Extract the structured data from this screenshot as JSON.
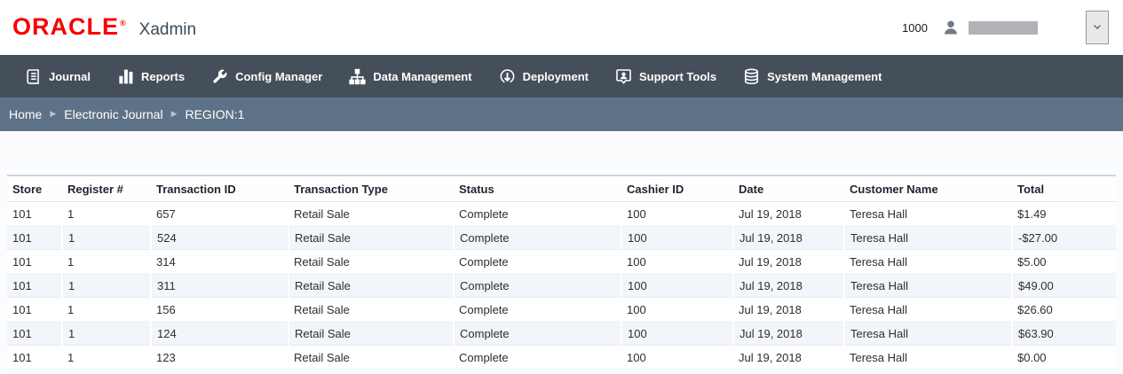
{
  "header": {
    "logo_text": "ORACLE",
    "logo_mark": "®",
    "app_name": "Xadmin",
    "user_id": "1000",
    "user_icon": "person-icon",
    "dropdown_icon": "chevron-down-icon"
  },
  "nav": {
    "items": [
      {
        "label": "Journal",
        "icon": "journal-icon"
      },
      {
        "label": "Reports",
        "icon": "bar-chart-icon"
      },
      {
        "label": "Config Manager",
        "icon": "wrench-icon"
      },
      {
        "label": "Data Management",
        "icon": "sitemap-icon"
      },
      {
        "label": "Deployment",
        "icon": "download-circle-icon"
      },
      {
        "label": "Support Tools",
        "icon": "support-bubble-icon"
      },
      {
        "label": "System Management",
        "icon": "database-icon"
      }
    ]
  },
  "breadcrumb": {
    "items": [
      "Home",
      "Electronic Journal",
      "REGION:1"
    ],
    "separator": "▶"
  },
  "table": {
    "columns": [
      "Store",
      "Register #",
      "Transaction ID",
      "Transaction Type",
      "Status",
      "Cashier ID",
      "Date",
      "Customer Name",
      "Total"
    ],
    "rows": [
      [
        "101",
        "1",
        "657",
        "Retail Sale",
        "Complete",
        "100",
        "Jul 19, 2018",
        "Teresa Hall",
        "$1.49"
      ],
      [
        "101",
        "1",
        "524",
        "Retail Sale",
        "Complete",
        "100",
        "Jul 19, 2018",
        "Teresa Hall",
        "-$27.00"
      ],
      [
        "101",
        "1",
        "314",
        "Retail Sale",
        "Complete",
        "100",
        "Jul 19, 2018",
        "Teresa Hall",
        "$5.00"
      ],
      [
        "101",
        "1",
        "311",
        "Retail Sale",
        "Complete",
        "100",
        "Jul 19, 2018",
        "Teresa Hall",
        "$49.00"
      ],
      [
        "101",
        "1",
        "156",
        "Retail Sale",
        "Complete",
        "100",
        "Jul 19, 2018",
        "Teresa Hall",
        "$26.60"
      ],
      [
        "101",
        "1",
        "124",
        "Retail Sale",
        "Complete",
        "100",
        "Jul 19, 2018",
        "Teresa Hall",
        "$63.90"
      ],
      [
        "101",
        "1",
        "123",
        "Retail Sale",
        "Complete",
        "100",
        "Jul 19, 2018",
        "Teresa Hall",
        "$0.00"
      ]
    ]
  },
  "colors": {
    "oracle_red": "#F80000",
    "nav_bg": "#454f59",
    "breadcrumb_bg": "#5e7287",
    "stripe_bg": "#f2f5f9"
  }
}
